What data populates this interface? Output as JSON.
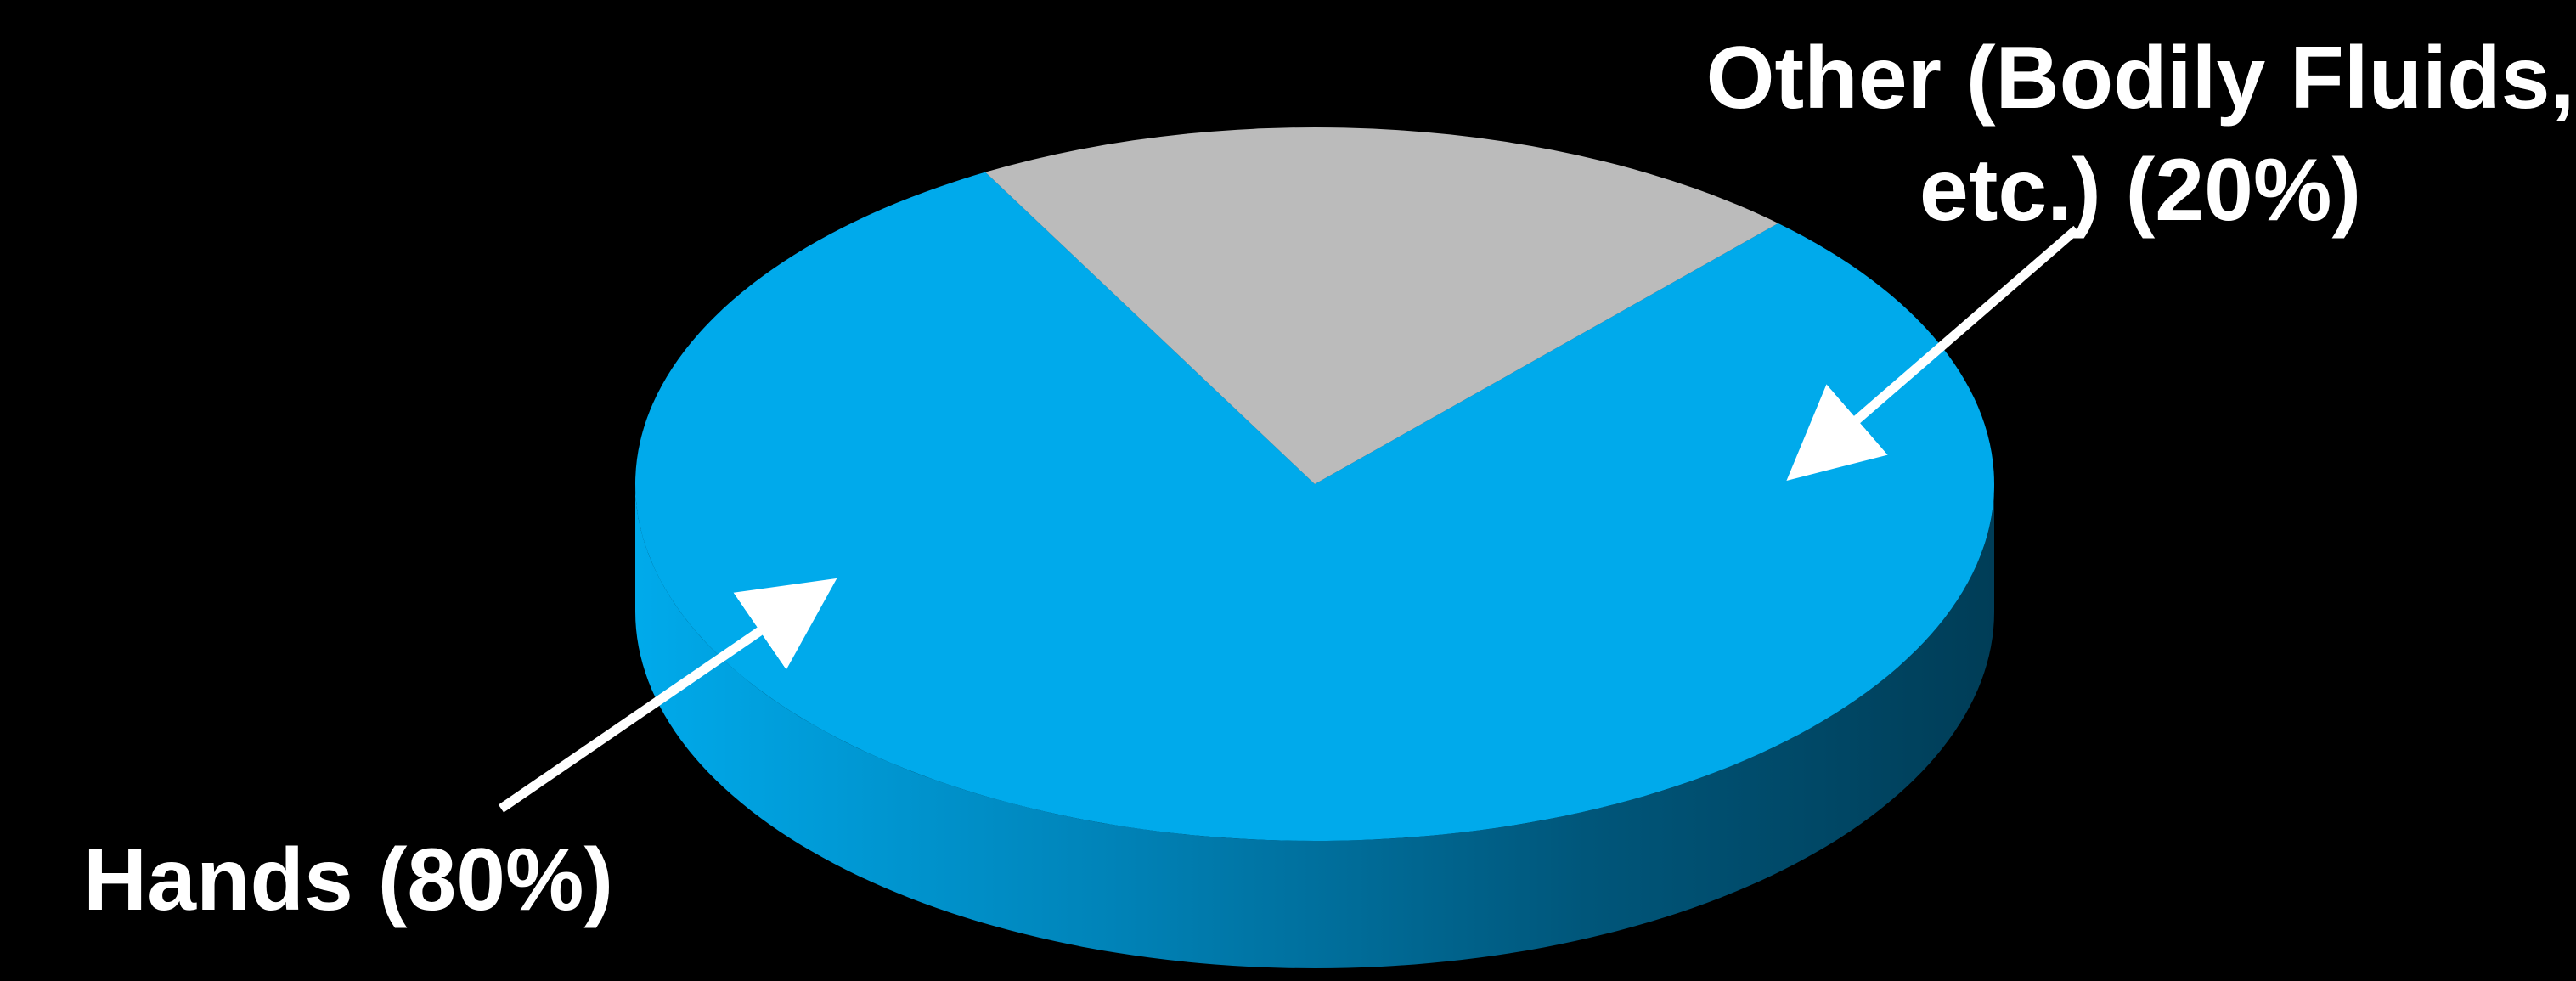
{
  "chart_data": {
    "type": "pie",
    "title": "",
    "style": "3d",
    "background": "#000000",
    "slices": [
      {
        "label": "Hands (80%)",
        "value": 80,
        "color": "#00AAEB",
        "side_color": "#0077A8"
      },
      {
        "label": "Other (Bodily Fluids, etc.) (20%)",
        "label_lines": [
          "Other (Bodily Fluids,",
          "etc.) (20%)"
        ],
        "value": 20,
        "color": "#BBBBBB",
        "side_color": "#8A8A8A"
      }
    ],
    "legend": "none",
    "label_color": "#FFFFFF"
  }
}
